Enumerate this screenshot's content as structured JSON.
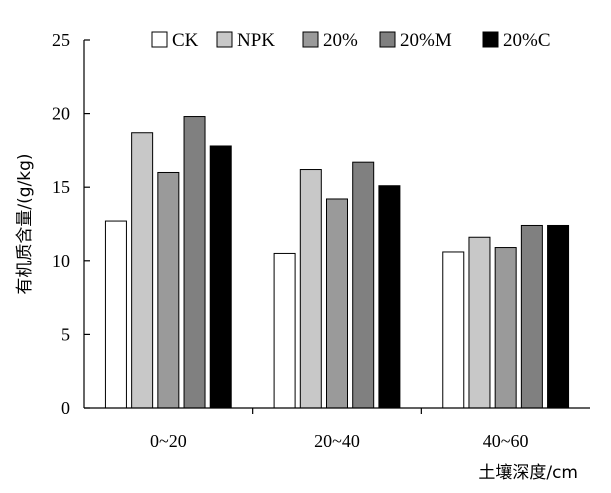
{
  "chart_data": {
    "type": "bar",
    "categories": [
      "0~20",
      "20~40",
      "40~60"
    ],
    "series": [
      {
        "name": "CK",
        "color": "#ffffff",
        "values": [
          12.7,
          10.5,
          10.6
        ]
      },
      {
        "name": "NPK",
        "color": "#c8c8c8",
        "values": [
          18.7,
          16.2,
          11.6
        ]
      },
      {
        "name": "20%",
        "color": "#9a9a9a",
        "values": [
          16.0,
          14.2,
          10.9
        ]
      },
      {
        "name": "20%M",
        "color": "#808080",
        "values": [
          19.8,
          16.7,
          12.4
        ]
      },
      {
        "name": "20%C",
        "color": "#000000",
        "values": [
          17.8,
          15.1,
          12.4
        ]
      }
    ],
    "xlabel": "土壤深度/cm",
    "ylabel": "有机质含量/(g/kg)",
    "ylim": [
      0,
      25
    ],
    "yticks": [
      "0",
      "5",
      "10",
      "15",
      "20",
      "25"
    ],
    "grid": false,
    "legend_position": "top-right"
  }
}
